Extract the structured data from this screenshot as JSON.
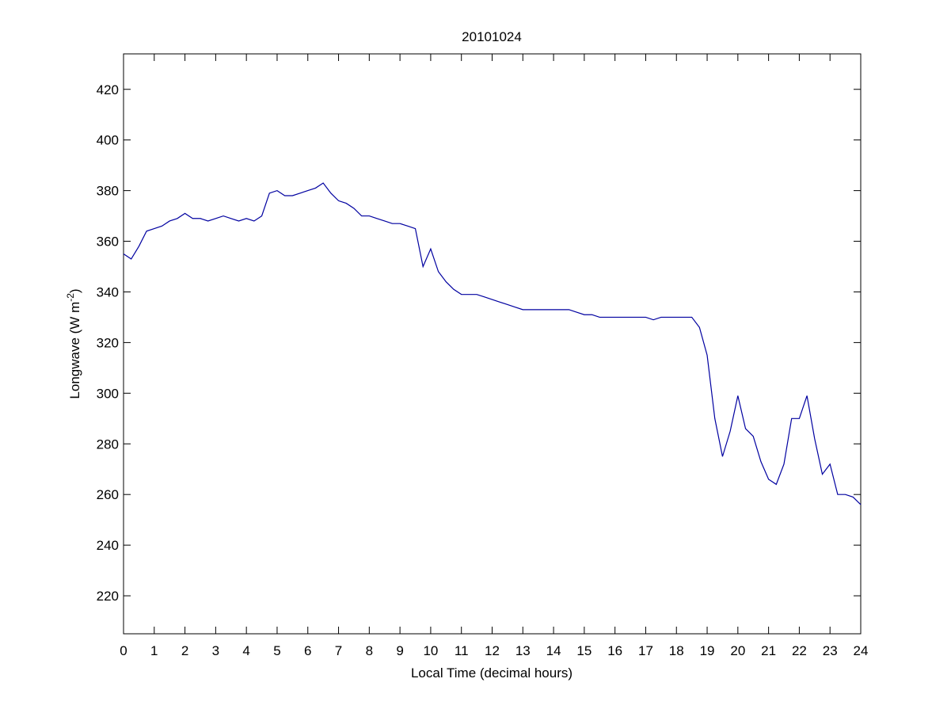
{
  "chart_data": {
    "type": "line",
    "title": "20101024",
    "xlabel": "Local Time (decimal hours)",
    "ylabel": {
      "text": "Longwave (W m",
      "superscript": "-2",
      "suffix": ")"
    },
    "x": [
      0,
      0.25,
      0.5,
      0.75,
      1,
      1.25,
      1.5,
      1.75,
      2,
      2.25,
      2.5,
      2.75,
      3,
      3.25,
      3.5,
      3.75,
      4,
      4.25,
      4.5,
      4.75,
      5,
      5.25,
      5.5,
      5.75,
      6,
      6.25,
      6.5,
      6.75,
      7,
      7.25,
      7.5,
      7.75,
      8,
      8.25,
      8.5,
      8.75,
      9,
      9.25,
      9.5,
      9.75,
      10,
      10.25,
      10.5,
      10.75,
      11,
      11.25,
      11.5,
      11.75,
      12,
      12.25,
      12.5,
      12.75,
      13,
      13.25,
      13.5,
      13.75,
      14,
      14.25,
      14.5,
      14.75,
      15,
      15.25,
      15.5,
      15.75,
      16,
      16.25,
      16.5,
      16.75,
      17,
      17.25,
      17.5,
      17.75,
      18,
      18.25,
      18.5,
      18.75,
      19,
      19.25,
      19.5,
      19.75,
      20,
      20.25,
      20.5,
      20.75,
      21,
      21.25,
      21.5,
      21.75,
      22,
      22.25,
      22.5,
      22.75,
      23,
      23.25,
      23.5,
      23.75,
      24
    ],
    "series": [
      {
        "name": "Longwave",
        "color": "#0000a0",
        "values": [
          355,
          353,
          358,
          364,
          365,
          366,
          368,
          369,
          371,
          369,
          369,
          368,
          369,
          370,
          369,
          368,
          369,
          368,
          370,
          379,
          380,
          378,
          378,
          379,
          380,
          381,
          383,
          379,
          376,
          375,
          373,
          370,
          370,
          369,
          368,
          367,
          367,
          366,
          365,
          350,
          357,
          348,
          344,
          341,
          339,
          339,
          339,
          338,
          337,
          336,
          335,
          334,
          333,
          333,
          333,
          333,
          333,
          333,
          333,
          332,
          331,
          331,
          330,
          330,
          330,
          330,
          330,
          330,
          330,
          329,
          330,
          330,
          330,
          330,
          330,
          326,
          315,
          290,
          275,
          285,
          299,
          286,
          283,
          273,
          266,
          264,
          272,
          290,
          290,
          299,
          282,
          268,
          272,
          260,
          260,
          259,
          256
        ]
      }
    ],
    "xlim": [
      0,
      24
    ],
    "ylim": [
      205,
      434
    ],
    "xticks": [
      0,
      1,
      2,
      3,
      4,
      5,
      6,
      7,
      8,
      9,
      10,
      11,
      12,
      13,
      14,
      15,
      16,
      17,
      18,
      19,
      20,
      21,
      22,
      23,
      24
    ],
    "yticks": [
      220,
      240,
      260,
      280,
      300,
      320,
      340,
      360,
      380,
      400,
      420
    ]
  }
}
